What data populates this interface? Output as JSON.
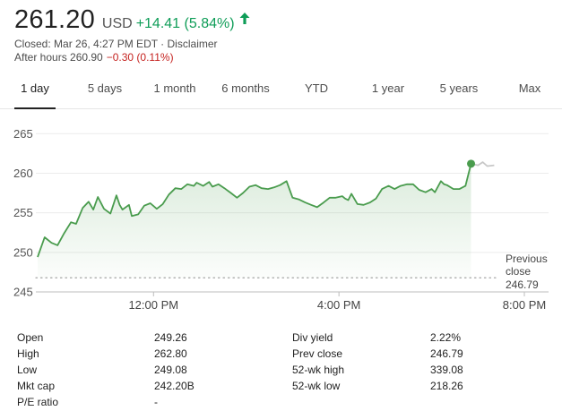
{
  "quote": {
    "price": "261.20",
    "currency": "USD",
    "change": "+14.41 (5.84%)",
    "change_color": "#0f9d58",
    "closed_text": "Closed: Mar 26, 4:27 PM EDT · ",
    "disclaimer": "Disclaimer",
    "after_hours_label": "After hours 260.90",
    "after_hours_change": "−0.30 (0.11%)"
  },
  "tabs": [
    {
      "label": "1 day",
      "active": true
    },
    {
      "label": "5 days"
    },
    {
      "label": "1 month"
    },
    {
      "label": "6 months"
    },
    {
      "label": "YTD"
    },
    {
      "label": "1 year"
    },
    {
      "label": "5 years"
    },
    {
      "label": "Max"
    }
  ],
  "chart_data": {
    "type": "line",
    "title": "",
    "xlabel": "",
    "ylabel": "",
    "x_ticks": [
      "12:00 PM",
      "4:00 PM",
      "8:00 PM"
    ],
    "x_tick_hours": [
      12,
      16,
      20
    ],
    "x_range_hours": [
      9.5,
      20
    ],
    "y_ticks": [
      245,
      250,
      255,
      260,
      265
    ],
    "ylim": [
      245,
      266.5
    ],
    "grid": true,
    "line_color": "#4a9c4e",
    "after_hours_color": "#c8c8c8",
    "previous_close": {
      "label_line1": "Previous",
      "label_line2": "close",
      "value": 246.79
    },
    "series": [
      {
        "values": [
          [
            9.5,
            249.4
          ],
          [
            9.65,
            251.9
          ],
          [
            9.8,
            251.2
          ],
          [
            9.93,
            250.9
          ],
          [
            10.07,
            252.4
          ],
          [
            10.22,
            253.8
          ],
          [
            10.33,
            253.6
          ],
          [
            10.47,
            255.6
          ],
          [
            10.6,
            256.4
          ],
          [
            10.7,
            255.4
          ],
          [
            10.8,
            257.0
          ],
          [
            10.93,
            255.5
          ],
          [
            11.07,
            254.9
          ],
          [
            11.2,
            257.2
          ],
          [
            11.27,
            256.0
          ],
          [
            11.33,
            255.4
          ],
          [
            11.47,
            256.0
          ],
          [
            11.53,
            254.6
          ],
          [
            11.67,
            254.8
          ],
          [
            11.8,
            255.9
          ],
          [
            11.93,
            256.2
          ],
          [
            12.07,
            255.5
          ],
          [
            12.2,
            256.1
          ],
          [
            12.33,
            257.3
          ],
          [
            12.47,
            258.1
          ],
          [
            12.6,
            258.0
          ],
          [
            12.73,
            258.6
          ],
          [
            12.87,
            258.4
          ],
          [
            12.93,
            258.8
          ],
          [
            13.07,
            258.4
          ],
          [
            13.2,
            258.9
          ],
          [
            13.27,
            258.3
          ],
          [
            13.4,
            258.6
          ],
          [
            13.53,
            258.1
          ],
          [
            13.67,
            257.5
          ],
          [
            13.8,
            256.9
          ],
          [
            13.93,
            257.5
          ],
          [
            14.07,
            258.3
          ],
          [
            14.2,
            258.5
          ],
          [
            14.33,
            258.1
          ],
          [
            14.47,
            258.0
          ],
          [
            14.6,
            258.2
          ],
          [
            14.73,
            258.5
          ],
          [
            14.87,
            259.0
          ],
          [
            15.0,
            256.9
          ],
          [
            15.13,
            256.7
          ],
          [
            15.27,
            256.3
          ],
          [
            15.4,
            256.0
          ],
          [
            15.53,
            255.7
          ],
          [
            15.67,
            256.3
          ],
          [
            15.8,
            256.9
          ],
          [
            15.93,
            256.9
          ],
          [
            16.07,
            257.1
          ],
          [
            16.13,
            256.8
          ],
          [
            16.2,
            256.6
          ],
          [
            16.27,
            257.4
          ],
          [
            16.4,
            256.1
          ],
          [
            16.53,
            256.0
          ],
          [
            16.67,
            256.3
          ],
          [
            16.8,
            256.8
          ],
          [
            16.93,
            258.0
          ],
          [
            17.07,
            258.4
          ],
          [
            17.2,
            258.0
          ],
          [
            17.33,
            258.4
          ],
          [
            17.47,
            258.6
          ],
          [
            17.6,
            258.6
          ],
          [
            17.73,
            257.9
          ],
          [
            17.87,
            257.6
          ],
          [
            18.0,
            258.0
          ],
          [
            18.07,
            257.6
          ],
          [
            18.2,
            259.0
          ],
          [
            18.27,
            258.6
          ],
          [
            18.33,
            258.5
          ],
          [
            18.47,
            258.0
          ],
          [
            18.6,
            258.0
          ],
          [
            18.73,
            258.4
          ],
          [
            18.85,
            261.2
          ]
        ]
      },
      {
        "name": "After hours",
        "values": [
          [
            18.85,
            261.2
          ],
          [
            19.0,
            261.0
          ],
          [
            19.1,
            261.4
          ],
          [
            19.2,
            260.9
          ],
          [
            19.35,
            261.0
          ]
        ]
      }
    ]
  },
  "stats": {
    "col1": [
      {
        "label": "Open",
        "value": "249.26"
      },
      {
        "label": "High",
        "value": "262.80"
      },
      {
        "label": "Low",
        "value": "249.08"
      },
      {
        "label": "Mkt cap",
        "value": "242.20B"
      },
      {
        "label": "P/E ratio",
        "value": "-"
      }
    ],
    "col2": [
      {
        "label": "Div yield",
        "value": "2.22%"
      },
      {
        "label": "Prev close",
        "value": "246.79"
      },
      {
        "label": "52-wk high",
        "value": "339.08"
      },
      {
        "label": "52-wk low",
        "value": "218.26"
      }
    ]
  }
}
